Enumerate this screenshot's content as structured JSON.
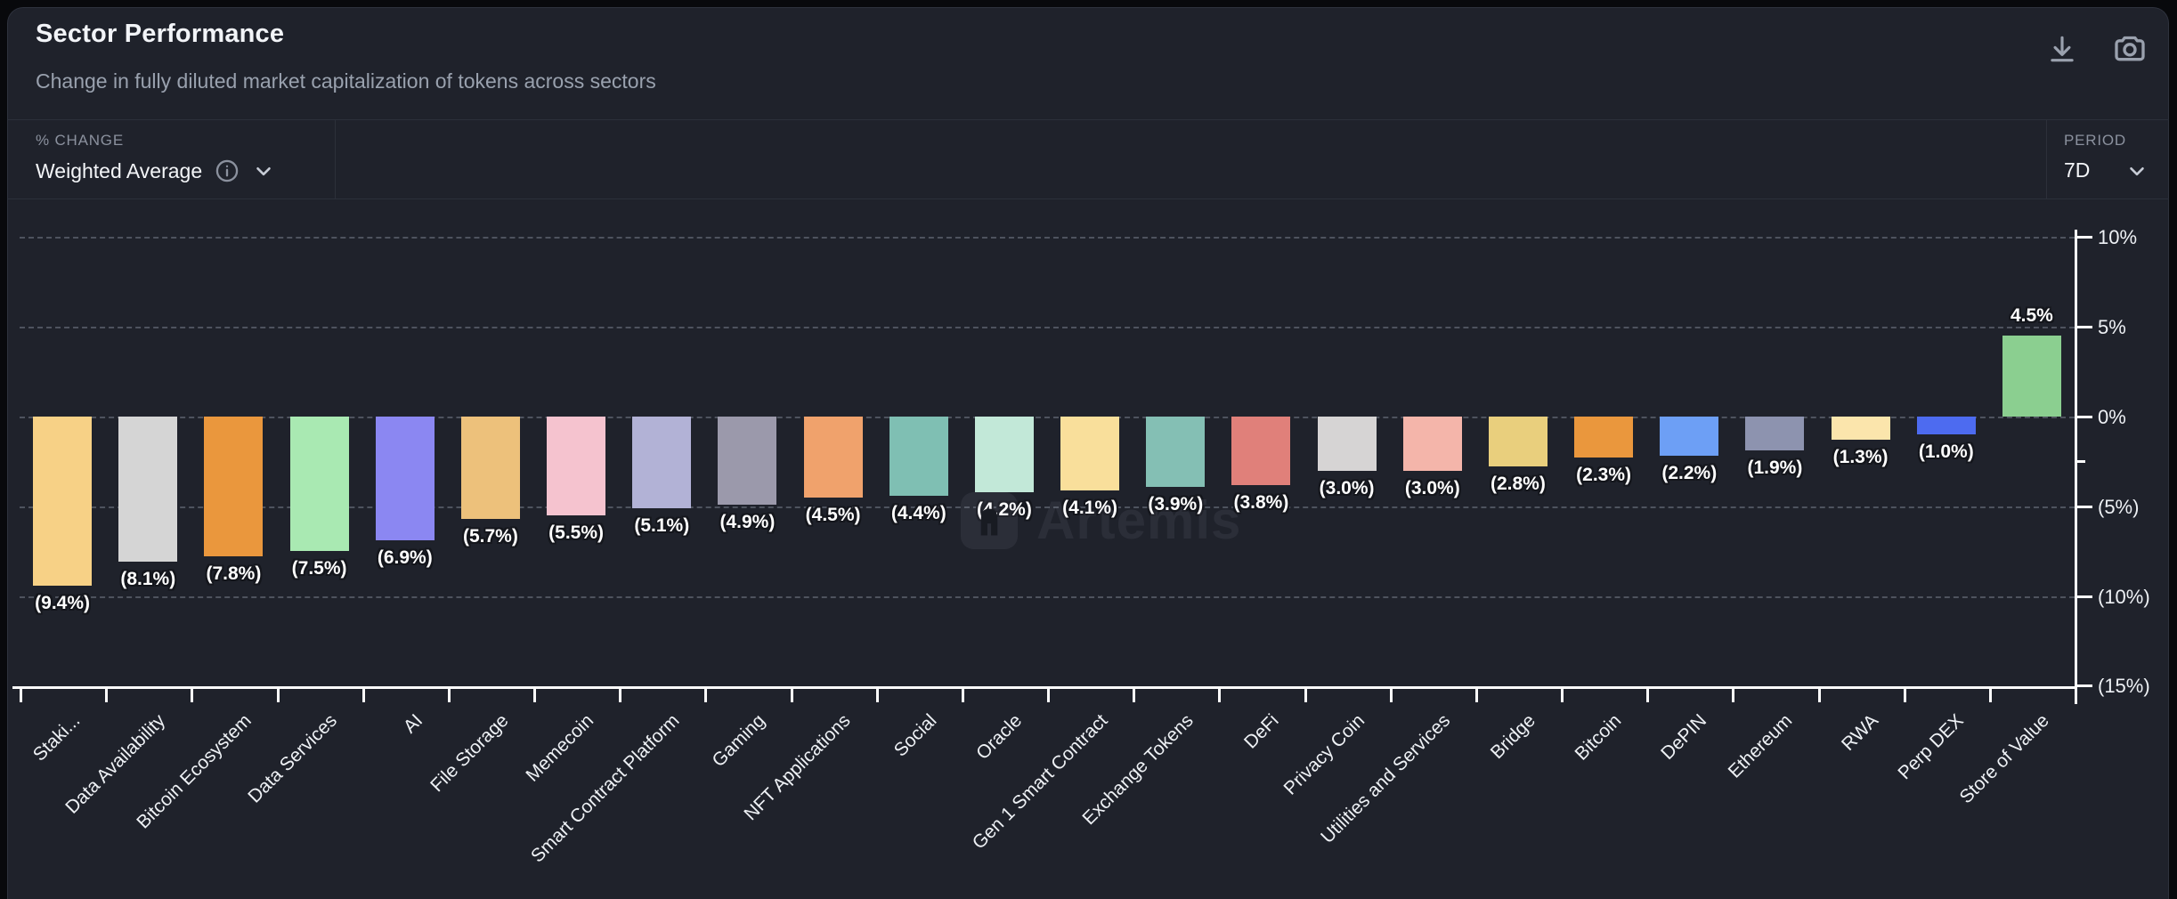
{
  "header": {
    "title": "Sector Performance",
    "subtitle": "Change in fully diluted market capitalization of tokens across sectors",
    "icons": [
      "download-icon",
      "camera-icon"
    ]
  },
  "controls": {
    "metric_label": "% CHANGE",
    "metric_value": "Weighted Average",
    "metric_icons": [
      "info-icon",
      "chevron-down-icon"
    ],
    "period_label": "PERIOD",
    "period_value": "7D",
    "period_icons": [
      "chevron-down-icon"
    ]
  },
  "watermark": {
    "text": "Artemis",
    "icon": "artemis-logo-icon"
  },
  "chart_data": {
    "type": "bar",
    "title": "Sector Performance",
    "xlabel": "",
    "ylabel": "% change",
    "ylim": [
      -15,
      10
    ],
    "grid": "horizontal-dashed",
    "legend": "none",
    "y_ticks": [
      {
        "value": 10,
        "label": "10%"
      },
      {
        "value": 5,
        "label": "5%"
      },
      {
        "value": 0,
        "label": "0%"
      },
      {
        "value": -5,
        "label": "(5%)"
      },
      {
        "value": -10,
        "label": "(10%)"
      },
      {
        "value": -15,
        "label": "(15%)"
      }
    ],
    "y_minor_ticks": [
      -2.5
    ],
    "categories": [
      "Staki...",
      "Data Availability",
      "Bitcoin Ecosystem",
      "Data Services",
      "AI",
      "File Storage",
      "Memecoin",
      "Smart Contract Platform",
      "Gaming",
      "NFT Applications",
      "Social",
      "Oracle",
      "Gen 1 Smart Contract",
      "Exchange Tokens",
      "DeFi",
      "Privacy Coin",
      "Utilities and Services",
      "Bridge",
      "Bitcoin",
      "DePIN",
      "Ethereum",
      "RWA",
      "Perp DEX",
      "Store of Value"
    ],
    "values": [
      -9.4,
      -8.1,
      -7.8,
      -7.5,
      -6.9,
      -5.7,
      -5.5,
      -5.1,
      -4.9,
      -4.5,
      -4.4,
      -4.2,
      -4.1,
      -3.9,
      -3.8,
      -3.0,
      -3.0,
      -2.8,
      -2.3,
      -2.2,
      -1.9,
      -1.3,
      -1.0,
      4.5
    ],
    "bar_labels": [
      "(9.4%)",
      "(8.1%)",
      "(7.8%)",
      "(7.5%)",
      "(6.9%)",
      "(5.7%)",
      "(5.5%)",
      "(5.1%)",
      "(4.9%)",
      "(4.5%)",
      "(4.4%)",
      "(4.2%)",
      "(4.1%)",
      "(3.9%)",
      "(3.8%)",
      "(3.0%)",
      "(3.0%)",
      "(2.8%)",
      "(2.3%)",
      "(2.2%)",
      "(1.9%)",
      "(1.3%)",
      "(1.0%)",
      "4.5%"
    ],
    "colors": [
      "#F7D186",
      "#D5D5D5",
      "#EA973D",
      "#A9E9B2",
      "#8B87F2",
      "#EDC17B",
      "#F5C3CF",
      "#B2B2D6",
      "#9B99AB",
      "#F0A26C",
      "#7FBFB3",
      "#C2E8D8",
      "#F9DF9B",
      "#84BFB4",
      "#E0807A",
      "#D6D4D4",
      "#F4B5AA",
      "#E9CF7D",
      "#EA973D",
      "#6D9FF5",
      "#8D93AF",
      "#FBE5AC",
      "#4D6BF0",
      "#8BCF90"
    ]
  }
}
